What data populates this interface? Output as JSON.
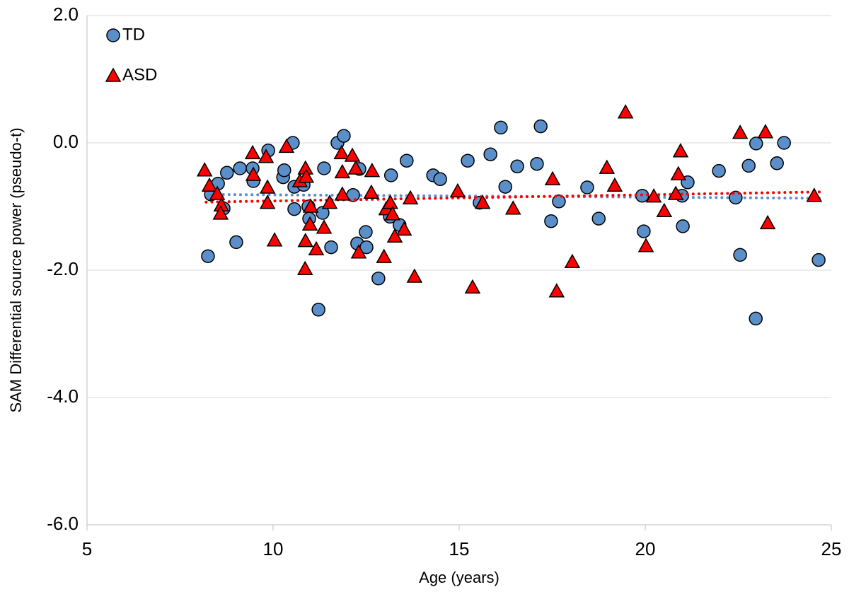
{
  "chart_data": {
    "type": "scatter",
    "xlabel": "Age (years)",
    "ylabel": "SAM Differential source power (pseudo-t)",
    "xlim": [
      5,
      25
    ],
    "xticks": [
      5,
      10,
      15,
      20,
      25
    ],
    "ylim": [
      -6,
      2
    ],
    "yticks": [
      {
        "value": -6,
        "label": "-6.0"
      },
      {
        "value": -4,
        "label": "-4.0"
      },
      {
        "value": -2,
        "label": "-2.0"
      },
      {
        "value": 0,
        "label": "0.0"
      },
      {
        "value": 2,
        "label": "2.0"
      }
    ],
    "grid": true,
    "legend": "upper left",
    "series": [
      {
        "name": "TD",
        "color": "#5b8fc9",
        "marker": "circle",
        "x": [
          8.25,
          8.33,
          8.52,
          8.67,
          8.76,
          9.01,
          9.11,
          9.45,
          9.47,
          9.87,
          10.27,
          10.3,
          10.53,
          10.57,
          10.57,
          10.82,
          10.95,
          10.97,
          11.22,
          11.33,
          11.37,
          11.56,
          11.73,
          11.9,
          12.15,
          12.26,
          12.32,
          12.51,
          12.49,
          12.83,
          13.17,
          13.14,
          13.4,
          13.59,
          14.3,
          14.49,
          15.23,
          15.55,
          15.84,
          16.12,
          16.24,
          16.56,
          17.09,
          17.19,
          17.47,
          17.68,
          18.44,
          18.75,
          19.92,
          19.96,
          20.99,
          21.01,
          21.14,
          21.98,
          22.43,
          22.55,
          22.78,
          22.97,
          22.98,
          23.54,
          23.73,
          24.66
        ],
        "values": [
          -1.78,
          -0.81,
          -0.64,
          -1.03,
          -0.47,
          -1.56,
          -0.4,
          -0.4,
          -0.6,
          -0.12,
          -0.54,
          -0.43,
          0,
          -0.69,
          -1.04,
          -0.66,
          -1,
          -1.19,
          -2.62,
          -1.1,
          -0.4,
          -1.64,
          0,
          0.11,
          -0.82,
          -1.58,
          -0.41,
          -1.64,
          -1.4,
          -2.13,
          -0.51,
          -1.16,
          -1.29,
          -0.28,
          -0.51,
          -0.57,
          -0.28,
          -0.94,
          -0.18,
          0.24,
          -0.69,
          -0.37,
          -0.33,
          0.26,
          -1.23,
          -0.92,
          -0.7,
          -1.19,
          -0.83,
          -1.39,
          -0.83,
          -1.31,
          -0.62,
          -0.44,
          -0.86,
          -1.76,
          -0.36,
          -2.76,
          -0.01,
          -0.32,
          0,
          -1.84
        ],
        "trend": {
          "x": [
            8.2,
            24.7
          ],
          "values": [
            -0.81,
            -0.87
          ]
        }
      },
      {
        "name": "ASD",
        "color": "#ff0000",
        "marker": "triangle",
        "x": [
          8.16,
          8.29,
          8.5,
          8.61,
          8.59,
          9.45,
          9.47,
          9.81,
          9.85,
          9.85,
          10.04,
          10.36,
          10.72,
          10.87,
          10.89,
          10.87,
          10.86,
          11.01,
          10.99,
          11.16,
          11.37,
          11.52,
          11.84,
          11.86,
          11.86,
          12.13,
          12.22,
          12.3,
          12.66,
          12.64,
          12.98,
          13.04,
          13.15,
          13.21,
          13.27,
          13.52,
          13.69,
          13.8,
          14.96,
          15.36,
          15.63,
          16.45,
          17.51,
          17.62,
          18.04,
          18.97,
          19.18,
          19.47,
          20.02,
          20.23,
          20.51,
          20.82,
          20.89,
          20.95,
          22.55,
          23.23,
          23.29,
          24.54
        ],
        "values": [
          -0.43,
          -0.67,
          -0.8,
          -0.98,
          -1.11,
          -0.16,
          -0.5,
          -0.22,
          -0.7,
          -0.94,
          -1.53,
          -0.06,
          -0.6,
          -0.4,
          -0.53,
          -1.54,
          -1.98,
          -1,
          -1.28,
          -1.67,
          -1.33,
          -0.94,
          -0.16,
          -0.46,
          -0.81,
          -0.2,
          -0.4,
          -1.72,
          -0.44,
          -0.78,
          -1.79,
          -1.04,
          -0.94,
          -1.12,
          -1.47,
          -1.36,
          -0.87,
          -2.1,
          -0.76,
          -2.27,
          -0.94,
          -1.03,
          -0.57,
          -2.33,
          -1.87,
          -0.39,
          -0.67,
          0.48,
          -1.62,
          -0.84,
          -1.07,
          -0.8,
          -0.49,
          -0.13,
          0.16,
          0.17,
          -1.26,
          -0.83
        ],
        "trend": {
          "x": [
            8.2,
            24.7
          ],
          "values": [
            -0.93,
            -0.77
          ]
        }
      }
    ]
  }
}
